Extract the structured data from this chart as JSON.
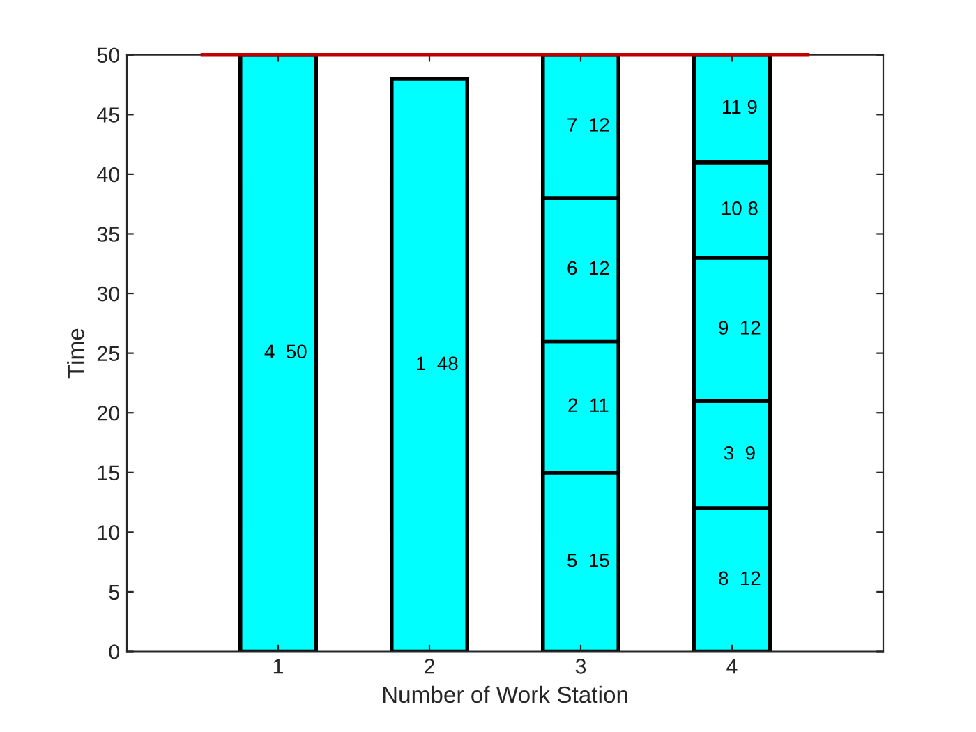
{
  "chart_data": {
    "type": "bar",
    "stacked": true,
    "xlabel": "Number of Work Station",
    "ylabel": "Time",
    "categories": [
      "1",
      "2",
      "3",
      "4"
    ],
    "series": [
      {
        "color": "#00ffff",
        "values": [
          50,
          48,
          15,
          12
        ],
        "value_labels": [
          "4  50",
          "1  48",
          "5  15",
          "8  12"
        ]
      },
      {
        "color": "#00ffff",
        "values": [
          null,
          null,
          11,
          9
        ],
        "value_labels": [
          null,
          null,
          "2  11",
          "3  9"
        ]
      },
      {
        "color": "#00ffff",
        "values": [
          null,
          null,
          12,
          12
        ],
        "value_labels": [
          null,
          null,
          "6  12",
          "9  12"
        ]
      },
      {
        "color": "#00ffff",
        "values": [
          null,
          null,
          12,
          8
        ],
        "value_labels": [
          null,
          null,
          "7  12",
          "10 8"
        ]
      },
      {
        "color": "#00ffff",
        "values": [
          null,
          null,
          null,
          9
        ],
        "value_labels": [
          null,
          null,
          null,
          "11 9"
        ]
      }
    ],
    "ylim": [
      0,
      50
    ],
    "yticks": [
      0,
      5,
      10,
      15,
      20,
      25,
      30,
      35,
      40,
      45,
      50
    ],
    "ref_lines": [
      {
        "axis": "y",
        "value": 50,
        "color": "#c00000"
      }
    ],
    "grid": false
  }
}
